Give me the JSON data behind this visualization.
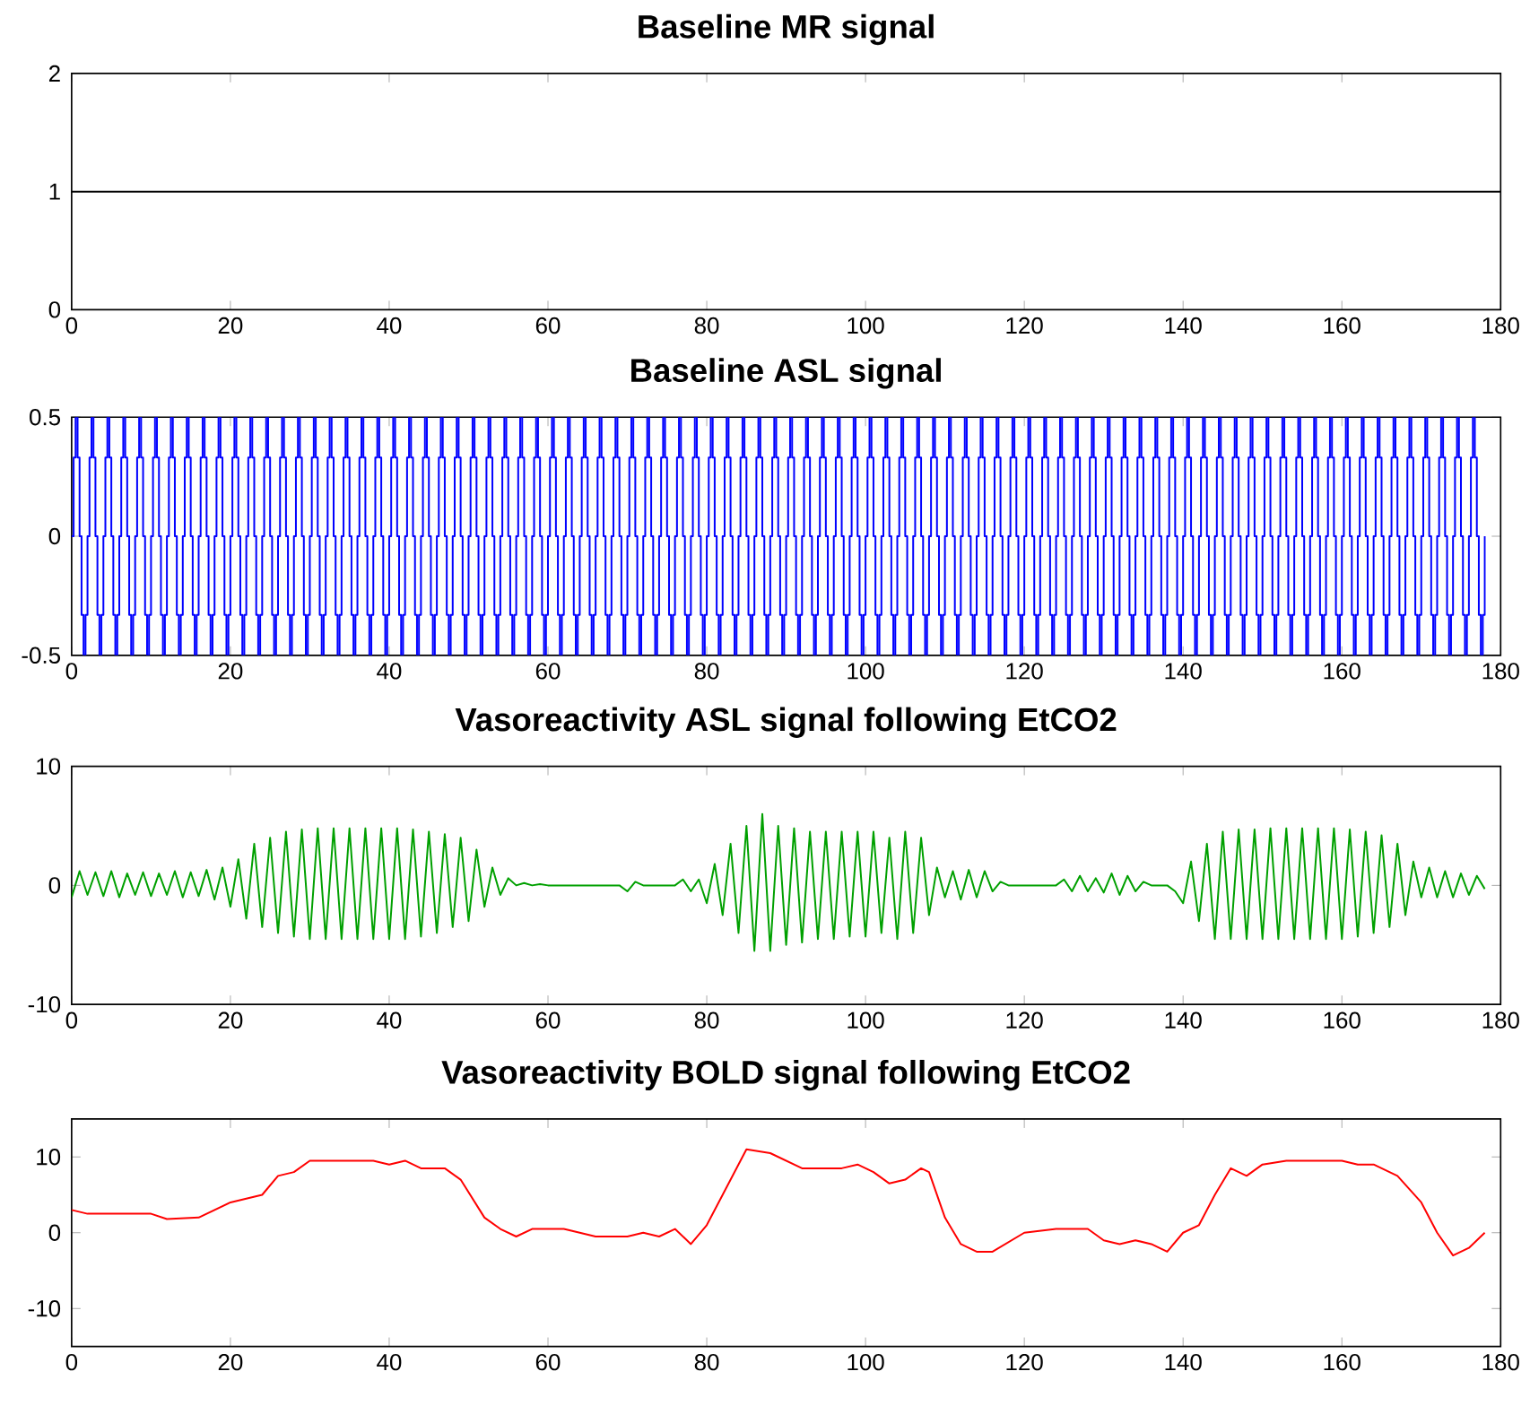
{
  "chart_data": [
    {
      "type": "line",
      "title": "Baseline MR signal",
      "x": [
        0,
        180
      ],
      "xlim": [
        0,
        180
      ],
      "ylim": [
        0,
        2
      ],
      "xticks": [
        0,
        20,
        40,
        60,
        80,
        100,
        120,
        140,
        160,
        180
      ],
      "yticks": [
        0,
        1,
        2
      ],
      "series": [
        {
          "color": "#000000",
          "values": [
            1,
            1
          ]
        }
      ]
    },
    {
      "type": "step",
      "title": "Baseline ASL signal",
      "xlim": [
        0,
        180
      ],
      "ylim": [
        -0.5,
        0.5
      ],
      "xticks": [
        0,
        20,
        40,
        60,
        80,
        100,
        120,
        140,
        160,
        180
      ],
      "yticks": [
        -0.5,
        0,
        0.5
      ],
      "x": [
        0,
        0.25,
        0.5,
        0.75,
        1,
        1.25,
        1.5,
        1.75,
        2,
        2.25,
        2.5,
        2.75,
        3,
        3.25,
        3.5,
        3.75,
        4,
        4.25,
        4.5,
        4.75,
        5,
        5.25,
        5.5,
        5.75,
        6,
        6.25,
        6.5,
        6.75,
        7,
        7.25,
        7.5,
        7.75,
        8,
        8.25,
        8.5,
        8.75,
        9,
        9.25,
        9.5,
        9.75,
        10,
        10.25,
        10.5,
        10.75,
        11,
        11.25,
        11.5,
        11.75,
        12,
        12.25,
        12.5,
        12.75,
        13,
        13.25,
        13.5,
        13.75,
        14,
        14.25,
        14.5,
        14.75,
        15,
        15.25,
        15.5,
        15.75,
        16,
        16.25,
        16.5,
        16.75,
        17,
        17.25,
        17.5,
        17.75,
        18,
        18.25,
        18.5,
        18.75,
        19,
        19.25,
        19.5,
        19.75,
        20,
        20.25,
        20.5,
        20.75,
        21,
        21.25,
        21.5,
        21.75,
        22,
        22.25,
        22.5,
        22.75,
        23,
        23.25,
        23.5,
        23.75,
        24,
        24.25,
        24.5,
        24.75,
        25,
        25.25,
        25.5,
        25.75,
        26,
        26.25,
        26.5,
        26.75,
        27,
        27.25,
        27.5,
        27.75,
        28,
        28.25,
        28.5,
        28.75,
        29,
        29.25,
        29.5,
        29.75,
        30,
        30.25,
        30.5,
        30.75,
        31,
        31.25,
        31.5,
        31.75,
        32,
        32.25,
        32.5,
        32.75,
        33,
        33.25,
        33.5,
        33.75,
        34,
        34.25,
        34.5,
        34.75,
        35,
        35.25,
        35.5,
        35.75,
        36,
        36.25,
        36.5,
        36.75,
        37,
        37.25,
        37.5,
        37.75,
        38,
        38.25,
        38.5,
        38.75,
        39,
        39.25,
        39.5,
        39.75,
        40,
        40.25,
        40.5,
        40.75,
        41,
        41.25,
        41.5,
        41.75,
        42,
        42.25,
        42.5,
        42.75,
        43,
        43.25,
        43.5,
        43.75,
        44,
        44.25,
        44.5,
        44.75,
        45,
        45.25,
        45.5,
        45.75,
        46,
        46.25,
        46.5,
        46.75,
        47,
        47.25,
        47.5,
        47.75,
        48,
        48.25,
        48.5,
        48.75,
        49,
        49.25,
        49.5,
        49.75,
        50,
        50.25,
        50.5,
        50.75,
        51,
        51.25,
        51.5,
        51.75,
        52,
        52.25,
        52.5,
        52.75,
        53,
        53.25,
        53.5,
        53.75,
        54,
        54.25,
        54.5,
        54.75,
        55,
        55.25,
        55.5,
        55.75,
        56,
        56.25,
        56.5,
        56.75,
        57,
        57.25,
        57.5,
        57.75,
        58,
        58.25,
        58.5,
        58.75,
        59,
        59.25,
        59.5,
        59.75,
        60,
        60.25,
        60.5,
        60.75,
        61,
        61.25,
        61.5,
        61.75,
        62,
        62.25,
        62.5,
        62.75,
        63,
        63.25,
        63.5,
        63.75,
        64,
        64.25,
        64.5,
        64.75,
        65,
        65.25,
        65.5,
        65.75,
        66,
        66.25,
        66.5,
        66.75,
        67,
        67.25,
        67.5,
        67.75,
        68,
        68.25,
        68.5,
        68.75,
        69,
        69.25,
        69.5,
        69.75,
        70,
        70.25,
        70.5,
        70.75,
        71,
        71.25,
        71.5,
        71.75,
        72,
        72.25,
        72.5,
        72.75,
        73,
        73.25,
        73.5,
        73.75,
        74,
        74.25,
        74.5,
        74.75,
        75,
        75.25,
        75.5,
        75.75,
        76,
        76.25,
        76.5,
        76.75,
        77,
        77.25,
        77.5,
        77.75,
        78,
        78.25,
        78.5,
        78.75,
        79,
        79.25,
        79.5,
        79.75,
        80,
        80.25,
        80.5,
        80.75,
        81,
        81.25,
        81.5,
        81.75,
        82,
        82.25,
        82.5,
        82.75,
        83,
        83.25,
        83.5,
        83.75,
        84,
        84.25,
        84.5,
        84.75,
        85,
        85.25,
        85.5,
        85.75,
        86,
        86.25,
        86.5,
        86.75,
        87,
        87.25,
        87.5,
        87.75,
        88,
        88.25,
        88.5,
        88.75,
        89,
        89.25,
        89.5,
        89.75,
        90,
        90.25,
        90.5,
        90.75,
        91,
        91.25,
        91.5,
        91.75,
        92,
        92.25,
        92.5,
        92.75,
        93,
        93.25,
        93.5,
        93.75,
        94,
        94.25,
        94.5,
        94.75,
        95,
        95.25,
        95.5,
        95.75,
        96,
        96.25,
        96.5,
        96.75,
        97,
        97.25,
        97.5,
        97.75,
        98,
        98.25,
        98.5,
        98.75,
        99,
        99.25,
        99.5,
        99.75,
        100,
        100.25,
        100.5,
        100.75,
        101,
        101.25,
        101.5,
        101.75,
        102,
        102.25,
        102.5,
        102.75,
        103,
        103.25,
        103.5,
        103.75,
        104,
        104.25,
        104.5,
        104.75,
        105,
        105.25,
        105.5,
        105.75,
        106,
        106.25,
        106.5,
        106.75,
        107,
        107.25,
        107.5,
        107.75,
        108,
        108.25,
        108.5,
        108.75,
        109,
        109.25,
        109.5,
        109.75,
        110,
        110.25,
        110.5,
        110.75,
        111,
        111.25,
        111.5,
        111.75,
        112,
        112.25,
        112.5,
        112.75,
        113,
        113.25,
        113.5,
        113.75,
        114,
        114.25,
        114.5,
        114.75,
        115,
        115.25,
        115.5,
        115.75,
        116,
        116.25,
        116.5,
        116.75,
        117,
        117.25,
        117.5,
        117.75,
        118,
        118.25,
        118.5,
        118.75,
        119,
        119.25,
        119.5,
        119.75,
        120,
        120.25,
        120.5,
        120.75,
        121,
        121.25,
        121.5,
        121.75,
        122,
        122.25,
        122.5,
        122.75,
        123,
        123.25,
        123.5,
        123.75,
        124,
        124.25,
        124.5,
        124.75,
        125,
        125.25,
        125.5,
        125.75,
        126,
        126.25,
        126.5,
        126.75,
        127,
        127.25,
        127.5,
        127.75,
        128,
        128.25,
        128.5,
        128.75,
        129,
        129.25,
        129.5,
        129.75,
        130,
        130.25,
        130.5,
        130.75,
        131,
        131.25,
        131.5,
        131.75,
        132,
        132.25,
        132.5,
        132.75,
        133,
        133.25,
        133.5,
        133.75,
        134,
        134.25,
        134.5,
        134.75,
        135,
        135.25,
        135.5,
        135.75,
        136,
        136.25,
        136.5,
        136.75,
        137,
        137.25,
        137.5,
        137.75,
        138,
        138.25,
        138.5,
        138.75,
        139,
        139.25,
        139.5,
        139.75,
        140,
        140.25,
        140.5,
        140.75,
        141,
        141.25,
        141.5,
        141.75,
        142,
        142.25,
        142.5,
        142.75,
        143,
        143.25,
        143.5,
        143.75,
        144,
        144.25,
        144.5,
        144.75,
        145,
        145.25,
        145.5,
        145.75,
        146,
        146.25,
        146.5,
        146.75,
        147,
        147.25,
        147.5,
        147.75,
        148,
        148.25,
        148.5,
        148.75,
        149,
        149.25,
        149.5,
        149.75,
        150,
        150.25,
        150.5,
        150.75,
        151,
        151.25,
        151.5,
        151.75,
        152,
        152.25,
        152.5,
        152.75,
        153,
        153.25,
        153.5,
        153.75,
        154,
        154.25,
        154.5,
        154.75,
        155,
        155.25,
        155.5,
        155.75,
        156,
        156.25,
        156.5,
        156.75,
        157,
        157.25,
        157.5,
        157.75,
        158,
        158.25,
        158.5,
        158.75,
        159,
        159.25,
        159.5,
        159.75,
        160,
        160.25,
        160.5,
        160.75,
        161,
        161.25,
        161.5,
        161.75,
        162,
        162.25,
        162.5,
        162.75,
        163,
        163.25,
        163.5,
        163.75,
        164,
        164.25,
        164.5,
        164.75,
        165,
        165.25,
        165.5,
        165.75,
        166,
        166.25,
        166.5,
        166.75,
        167,
        167.25,
        167.5,
        167.75,
        168,
        168.25,
        168.5,
        168.75,
        169,
        169.25,
        169.5,
        169.75,
        170,
        170.25,
        170.5,
        170.75,
        171,
        171.25,
        171.5,
        171.75,
        172,
        172.25,
        172.5,
        172.75,
        173,
        173.25,
        173.5,
        173.75,
        174,
        174.25,
        174.5,
        174.75,
        175,
        175.25,
        175.5,
        175.75,
        176,
        176.25,
        176.5,
        176.75,
        177,
        177.25,
        177.5,
        177.75,
        178
      ],
      "series": [
        {
          "color": "#0000ff",
          "values": [
            0,
            0.33,
            0.5,
            0.33,
            0,
            -0.33,
            -0.5,
            -0.33,
            0,
            0.33,
            0.5,
            0.33,
            0,
            -0.33,
            -0.5,
            -0.33,
            0,
            0.33,
            0.5,
            0.33,
            0,
            -0.33,
            -0.5,
            -0.33,
            0,
            0.33,
            0.5,
            0.33,
            0,
            -0.33,
            -0.5,
            -0.33,
            0,
            0.33,
            0.5,
            0.33,
            0,
            -0.33,
            -0.5,
            -0.33,
            0,
            0.33,
            0.5,
            0.33,
            0,
            -0.33,
            -0.5,
            -0.33,
            0,
            0.33,
            0.5,
            0.33,
            0,
            -0.33,
            -0.5,
            -0.33,
            0,
            0.33,
            0.5,
            0.33,
            0,
            -0.33,
            -0.5,
            -0.33,
            0,
            0.33,
            0.5,
            0.33,
            0,
            -0.33,
            -0.5,
            -0.33,
            0,
            0.33,
            0.5,
            0.33,
            0,
            -0.33,
            -0.5,
            -0.33,
            0,
            0.33,
            0.5,
            0.33,
            0,
            -0.33,
            -0.5,
            -0.33,
            0,
            0.33,
            0.5,
            0.33,
            0,
            -0.33,
            -0.5,
            -0.33,
            0,
            0.33,
            0.5,
            0.33,
            0,
            -0.33,
            -0.5,
            -0.33,
            0,
            0.33,
            0.5,
            0.33,
            0,
            -0.33,
            -0.5,
            -0.33,
            0,
            0.33,
            0.5,
            0.33,
            0,
            -0.33,
            -0.5,
            -0.33,
            0,
            0.33,
            0.5,
            0.33,
            0,
            -0.33,
            -0.5,
            -0.33,
            0,
            0.33,
            0.5,
            0.33,
            0,
            -0.33,
            -0.5,
            -0.33,
            0,
            0.33,
            0.5,
            0.33,
            0,
            -0.33,
            -0.5,
            -0.33,
            0,
            0.33,
            0.5,
            0.33,
            0,
            -0.33,
            -0.5,
            -0.33,
            0,
            0.33,
            0.5,
            0.33,
            0,
            -0.33,
            -0.5,
            -0.33,
            0,
            0.33,
            0.5,
            0.33,
            0,
            -0.33,
            -0.5,
            -0.33,
            0,
            0.33,
            0.5,
            0.33,
            0,
            -0.33,
            -0.5,
            -0.33,
            0,
            0.33,
            0.5,
            0.33,
            0,
            -0.33,
            -0.5,
            -0.33,
            0,
            0.33,
            0.5,
            0.33,
            0,
            -0.33,
            -0.5,
            -0.33,
            0,
            0.33,
            0.5,
            0.33,
            0,
            -0.33,
            -0.5,
            -0.33,
            0,
            0.33,
            0.5,
            0.33,
            0,
            -0.33,
            -0.5,
            -0.33,
            0,
            0.33,
            0.5,
            0.33,
            0,
            -0.33,
            -0.5,
            -0.33,
            0,
            0.33,
            0.5,
            0.33,
            0,
            -0.33,
            -0.5,
            -0.33,
            0,
            0.33,
            0.5,
            0.33,
            0,
            -0.33,
            -0.5,
            -0.33,
            0,
            0.33,
            0.5,
            0.33,
            0,
            -0.33,
            -0.5,
            -0.33,
            0,
            0.33,
            0.5,
            0.33,
            0,
            -0.33,
            -0.5,
            -0.33,
            0,
            0.33,
            0.5,
            0.33,
            0,
            -0.33,
            -0.5,
            -0.33,
            0,
            0.33,
            0.5,
            0.33,
            0,
            -0.33,
            -0.5,
            -0.33,
            0,
            0.33,
            0.5,
            0.33,
            0,
            -0.33,
            -0.5,
            -0.33,
            0,
            0.33,
            0.5,
            0.33,
            0,
            -0.33,
            -0.5,
            -0.33,
            0,
            0.33,
            0.5,
            0.33,
            0,
            -0.33,
            -0.5,
            -0.33,
            0,
            0.33,
            0.5,
            0.33,
            0,
            -0.33,
            -0.5,
            -0.33,
            0,
            0.33,
            0.5,
            0.33,
            0,
            -0.33,
            -0.5,
            -0.33,
            0,
            0.33,
            0.5,
            0.33,
            0,
            -0.33,
            -0.5,
            -0.33,
            0,
            0.33,
            0.5,
            0.33,
            0,
            -0.33,
            -0.5,
            -0.33,
            0,
            0.33,
            0.5,
            0.33,
            0,
            -0.33,
            -0.5,
            -0.33,
            0,
            0.33,
            0.5,
            0.33,
            0,
            -0.33,
            -0.5,
            -0.33,
            0,
            0.33,
            0.5,
            0.33,
            0,
            -0.33,
            -0.5,
            -0.33,
            0,
            0.33,
            0.5,
            0.33,
            0,
            -0.33,
            -0.5,
            -0.33,
            0,
            0.33,
            0.5,
            0.33,
            0,
            -0.33,
            -0.5,
            -0.33,
            0,
            0.33,
            0.5,
            0.33,
            0,
            -0.33,
            -0.5,
            -0.33,
            0,
            0.33,
            0.5,
            0.33,
            0,
            -0.33,
            -0.5,
            -0.33,
            0,
            0.33,
            0.5,
            0.33,
            0,
            -0.33,
            -0.5,
            -0.33,
            0,
            0.33,
            0.5,
            0.33,
            0,
            -0.33,
            -0.5,
            -0.33,
            0,
            0.33,
            0.5,
            0.33,
            0,
            -0.33,
            -0.5,
            -0.33,
            0,
            0.33,
            0.5,
            0.33,
            0,
            -0.33,
            -0.5,
            -0.33,
            0,
            0.33,
            0.5,
            0.33,
            0,
            -0.33,
            -0.5,
            -0.33,
            0,
            0.33,
            0.5,
            0.33,
            0,
            -0.33,
            -0.5,
            -0.33,
            0,
            0.33,
            0.5,
            0.33,
            0,
            -0.33,
            -0.5,
            -0.33,
            0,
            0.33,
            0.5,
            0.33,
            0,
            -0.33,
            -0.5,
            -0.33,
            0,
            0.33,
            0.5,
            0.33,
            0,
            -0.33,
            -0.5,
            -0.33,
            0,
            0.33,
            0.5,
            0.33,
            0,
            -0.33,
            -0.5,
            -0.33,
            0,
            0.33,
            0.5,
            0.33,
            0,
            -0.33,
            -0.5,
            -0.33,
            0,
            0.33,
            0.5,
            0.33,
            0,
            -0.33,
            -0.5,
            -0.33,
            0,
            0.33,
            0.5,
            0.33,
            0,
            -0.33,
            -0.5,
            -0.33,
            0,
            0.33,
            0.5,
            0.33,
            0,
            -0.33,
            -0.5,
            -0.33,
            0,
            0.33,
            0.5,
            0.33,
            0,
            -0.33,
            -0.5,
            -0.33,
            0,
            0.33,
            0.5,
            0.33,
            0,
            -0.33,
            -0.5,
            -0.33,
            0,
            0.33,
            0.5,
            0.33,
            0,
            -0.33,
            -0.5,
            -0.33,
            0,
            0.33,
            0.5,
            0.33,
            0,
            -0.33,
            -0.5,
            -0.33,
            0,
            0.33,
            0.5,
            0.33,
            0,
            -0.33,
            -0.5,
            -0.33,
            0,
            0.33,
            0.5,
            0.33,
            0,
            -0.33,
            -0.5,
            -0.33,
            0,
            0.33,
            0.5,
            0.33,
            0,
            -0.33,
            -0.5,
            -0.33,
            0,
            0.33,
            0.5,
            0.33,
            0,
            -0.33,
            -0.5,
            -0.33,
            0,
            0.33,
            0.5,
            0.33,
            0,
            -0.33,
            -0.5,
            -0.33,
            0,
            0.33,
            0.5,
            0.33,
            0,
            -0.33,
            -0.5,
            -0.33,
            0,
            0.33,
            0.5,
            0.33,
            0,
            -0.33,
            -0.5,
            -0.33,
            0,
            0.33,
            0.5,
            0.33,
            0,
            -0.33,
            -0.5,
            -0.33,
            0,
            0.33,
            0.5,
            0.33,
            0,
            -0.33,
            -0.5,
            -0.33,
            0,
            0.33,
            0.5,
            0.33,
            0,
            -0.33,
            -0.5,
            -0.33,
            0,
            0.33,
            0.5,
            0.33,
            0,
            -0.33,
            -0.5,
            -0.33,
            0,
            0.33,
            0.5,
            0.33,
            0,
            -0.33,
            -0.5,
            -0.33,
            0,
            0.33,
            0.5,
            0.33,
            0,
            -0.33,
            -0.5,
            -0.33,
            0,
            0.33,
            0.5,
            0.33,
            0,
            -0.33,
            -0.5,
            -0.33,
            0,
            0.33,
            0.5,
            0.33,
            0,
            -0.33,
            -0.5,
            -0.33,
            0,
            0.33,
            0.5,
            0.33,
            0,
            -0.33,
            -0.5,
            -0.33,
            0,
            0.33,
            0.5,
            0.33,
            0,
            -0.33,
            -0.5,
            -0.33,
            0,
            0.33,
            0.5,
            0.33,
            0,
            -0.33,
            -0.5,
            -0.33,
            0,
            0.33,
            0.5,
            0.33,
            0,
            -0.33,
            -0.5,
            -0.33,
            0,
            0.33,
            0.5,
            0.33,
            0,
            -0.33,
            -0.5,
            -0.33,
            0,
            0.33,
            0.5,
            0.33,
            0,
            -0.33,
            -0.5,
            -0.33,
            0,
            0.33,
            0.5,
            0.33,
            0,
            -0.33,
            -0.5,
            -0.33,
            0,
            0.33,
            0.5,
            0.33,
            0,
            -0.33,
            -0.5,
            -0.33,
            0,
            0.33,
            0.5,
            0.33,
            0,
            -0.33,
            -0.5,
            -0.33,
            0
          ]
        }
      ]
    },
    {
      "type": "line",
      "title": "Vasoreactivity ASL signal following EtCO2",
      "xlim": [
        0,
        180
      ],
      "ylim": [
        -10,
        10
      ],
      "xticks": [
        0,
        20,
        40,
        60,
        80,
        100,
        120,
        140,
        160,
        180
      ],
      "yticks": [
        -10,
        0,
        10
      ],
      "x": [
        0,
        1,
        2,
        3,
        4,
        5,
        6,
        7,
        8,
        9,
        10,
        11,
        12,
        13,
        14,
        15,
        16,
        17,
        18,
        19,
        20,
        21,
        22,
        23,
        24,
        25,
        26,
        27,
        28,
        29,
        30,
        31,
        32,
        33,
        34,
        35,
        36,
        37,
        38,
        39,
        40,
        41,
        42,
        43,
        44,
        45,
        46,
        47,
        48,
        49,
        50,
        51,
        52,
        53,
        54,
        55,
        56,
        57,
        58,
        59,
        60,
        61,
        62,
        63,
        64,
        65,
        66,
        67,
        68,
        69,
        70,
        71,
        72,
        73,
        74,
        75,
        76,
        77,
        78,
        79,
        80,
        81,
        82,
        83,
        84,
        85,
        86,
        87,
        88,
        89,
        90,
        91,
        92,
        93,
        94,
        95,
        96,
        97,
        98,
        99,
        100,
        101,
        102,
        103,
        104,
        105,
        106,
        107,
        108,
        109,
        110,
        111,
        112,
        113,
        114,
        115,
        116,
        117,
        118,
        119,
        120,
        121,
        122,
        123,
        124,
        125,
        126,
        127,
        128,
        129,
        130,
        131,
        132,
        133,
        134,
        135,
        136,
        137,
        138,
        139,
        140,
        141,
        142,
        143,
        144,
        145,
        146,
        147,
        148,
        149,
        150,
        151,
        152,
        153,
        154,
        155,
        156,
        157,
        158,
        159,
        160,
        161,
        162,
        163,
        164,
        165,
        166,
        167,
        168,
        169,
        170,
        171,
        172,
        173,
        174,
        175,
        176,
        177,
        178
      ],
      "series": [
        {
          "color": "#00a000",
          "values": [
            -1,
            1.2,
            -0.8,
            1.1,
            -0.9,
            1.2,
            -1,
            1,
            -0.8,
            1.1,
            -0.9,
            1,
            -0.8,
            1.2,
            -1,
            1.1,
            -0.9,
            1.3,
            -1.2,
            1.5,
            -1.8,
            2.2,
            -2.8,
            3.5,
            -3.5,
            4,
            -4,
            4.5,
            -4.3,
            4.7,
            -4.5,
            4.8,
            -4.5,
            4.8,
            -4.5,
            4.8,
            -4.5,
            4.8,
            -4.5,
            4.8,
            -4.5,
            4.8,
            -4.5,
            4.7,
            -4.3,
            4.5,
            -4,
            4.3,
            -3.5,
            4,
            -3,
            3,
            -1.8,
            1.5,
            -0.8,
            0.6,
            0,
            0.2,
            0,
            0.1,
            0,
            0,
            0,
            0,
            0,
            0,
            0,
            0,
            0,
            0,
            -0.5,
            0.3,
            0,
            0,
            0,
            0,
            0,
            0.5,
            -0.5,
            0.5,
            -1.5,
            1.8,
            -2.5,
            3.5,
            -4,
            5,
            -5.5,
            6,
            -5.5,
            5,
            -5,
            4.8,
            -4.8,
            4.5,
            -4.5,
            4.5,
            -4.5,
            4.5,
            -4.3,
            4.5,
            -4.3,
            4.5,
            -4,
            4,
            -4.5,
            4.5,
            -4,
            4,
            -2.5,
            1.5,
            -1,
            1.2,
            -1.2,
            1.3,
            -1,
            1.2,
            -0.5,
            0.3,
            0,
            0,
            0,
            0,
            0,
            0,
            0,
            0.5,
            -0.5,
            0.8,
            -0.5,
            0.6,
            -0.6,
            1,
            -0.8,
            0.8,
            -0.5,
            0.3,
            0,
            0,
            0,
            -0.5,
            -1.5,
            2,
            -3,
            3.5,
            -4.5,
            4.5,
            -4.5,
            4.7,
            -4.5,
            4.7,
            -4.5,
            4.8,
            -4.5,
            4.8,
            -4.5,
            4.8,
            -4.5,
            4.8,
            -4.5,
            4.8,
            -4.5,
            4.7,
            -4.3,
            4.5,
            -4,
            4.2,
            -3.5,
            3.5,
            -2.5,
            2,
            -1,
            1.5,
            -1,
            1.2,
            -1,
            1,
            -0.8,
            0.8,
            -0.3
          ]
        }
      ]
    },
    {
      "type": "line",
      "title": "Vasoreactivity BOLD signal following EtCO2",
      "xlim": [
        0,
        180
      ],
      "ylim": [
        -15,
        15
      ],
      "xticks": [
        0,
        20,
        40,
        60,
        80,
        100,
        120,
        140,
        160,
        180
      ],
      "yticks": [
        -10,
        0,
        10
      ],
      "x": [
        0,
        2,
        10,
        12,
        16,
        20,
        22,
        24,
        26,
        28,
        30,
        36,
        38,
        40,
        42,
        44,
        47,
        49,
        52,
        54,
        56,
        58,
        62,
        66,
        70,
        72,
        74,
        76,
        78,
        80,
        82,
        85,
        88,
        92,
        97,
        99,
        101,
        103,
        105,
        107,
        108,
        110,
        112,
        114,
        116,
        120,
        124,
        128,
        130,
        132,
        134,
        136,
        138,
        140,
        142,
        144,
        146,
        148,
        150,
        153,
        160,
        162,
        164,
        167,
        170,
        172,
        174,
        176,
        178
      ],
      "series": [
        {
          "color": "#ff0000",
          "values": [
            3,
            2.5,
            2.5,
            1.8,
            2,
            4,
            4.5,
            5,
            7.5,
            8,
            9.5,
            9.5,
            9.5,
            9,
            9.5,
            8.5,
            8.5,
            7,
            2,
            0.5,
            -0.5,
            0.5,
            0.5,
            -0.5,
            -0.5,
            0,
            -0.5,
            0.5,
            -1.5,
            1,
            5,
            11,
            10.5,
            8.5,
            8.5,
            9,
            8,
            6.5,
            7,
            8.5,
            8,
            2,
            -1.5,
            -2.5,
            -2.5,
            0,
            0.5,
            0.5,
            -1,
            -1.5,
            -1,
            -1.5,
            -2.5,
            0,
            1,
            5,
            8.5,
            7.5,
            9,
            9.5,
            9.5,
            9,
            9,
            7.5,
            4,
            0,
            -3,
            -2,
            0
          ]
        }
      ]
    }
  ]
}
